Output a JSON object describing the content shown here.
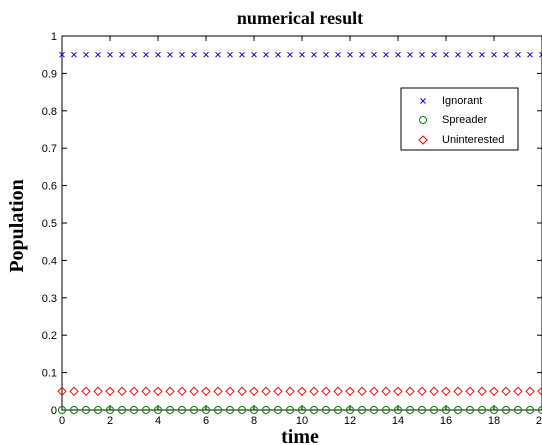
{
  "chart_data": {
    "type": "scatter",
    "title": "numerical result",
    "xlabel": "time",
    "ylabel": "Population",
    "xlim": [
      0,
      20
    ],
    "ylim": [
      0,
      1
    ],
    "xticks": [
      "0",
      "2",
      "4",
      "6",
      "8",
      "10",
      "12",
      "14",
      "16",
      "18",
      "20"
    ],
    "yticks": [
      "0",
      "0.1",
      "0.2",
      "0.3",
      "0.4",
      "0.5",
      "0.6",
      "0.7",
      "0.8",
      "0.9",
      "1"
    ],
    "grid": false,
    "legend_position": "top-right",
    "x": [
      0,
      0.5,
      1,
      1.5,
      2,
      2.5,
      3,
      3.5,
      4,
      4.5,
      5,
      5.5,
      6,
      6.5,
      7,
      7.5,
      8,
      8.5,
      9,
      9.5,
      10,
      10.5,
      11,
      11.5,
      12,
      12.5,
      13,
      13.5,
      14,
      14.5,
      15,
      15.5,
      16,
      16.5,
      17,
      17.5,
      18,
      18.5,
      19,
      19.5,
      20
    ],
    "series": [
      {
        "name": "Ignorant",
        "marker": "x",
        "color": "#0000ff",
        "value": 0.95
      },
      {
        "name": "Spreader",
        "marker": "circle",
        "color": "#008000",
        "value": 0.0
      },
      {
        "name": "Uninterested",
        "marker": "diamond",
        "color": "#ff0000",
        "value": 0.05
      }
    ]
  }
}
